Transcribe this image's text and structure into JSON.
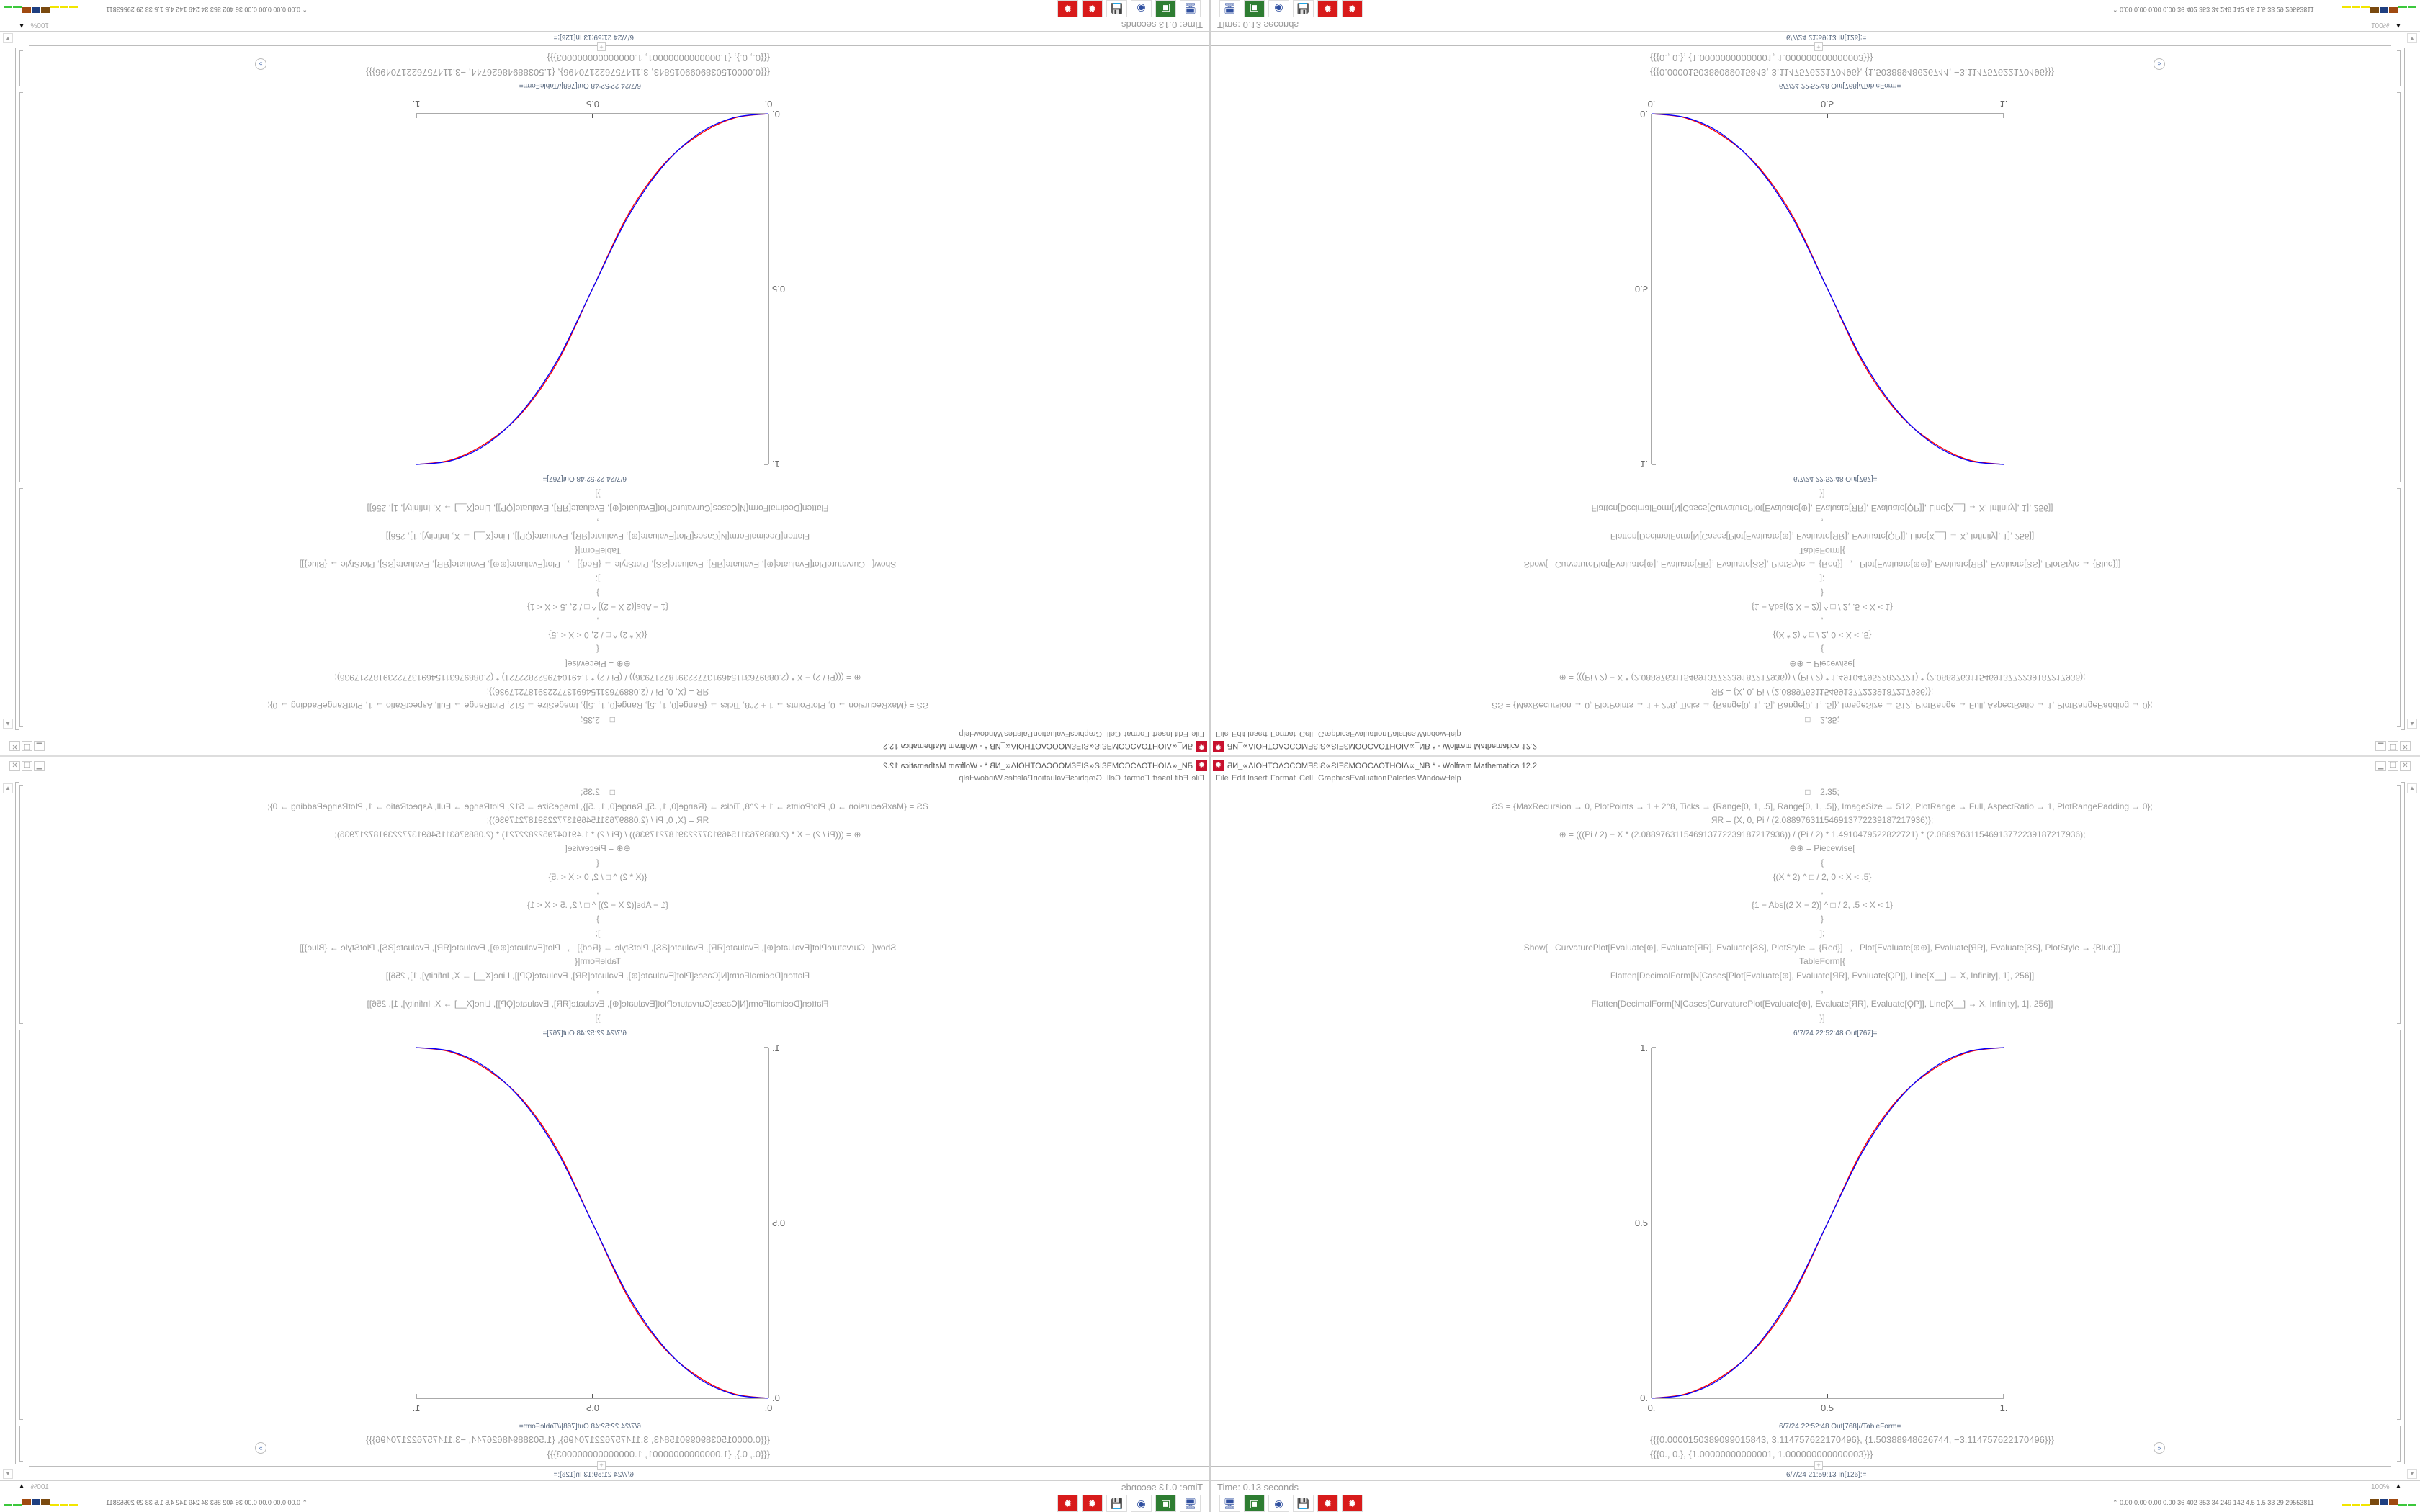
{
  "window": {
    "title": "ƋИ_∝ΔIOHTOΛƆCOMƎƐIƧ∝ƧIƎƐMOOCΛOTHOIΔ∝_NB * - Wolfram Mathematica 12.2",
    "controls": {
      "minimize": "▁",
      "maximize": "☐",
      "close": "✕"
    }
  },
  "menu": [
    "File",
    "Edit",
    "Insert",
    "Format",
    "Cell",
    "Graphics",
    "Evaluation",
    "Palettes",
    "Window",
    "Help"
  ],
  "cells": {
    "input_lines": [
      "□ = 2.35;",
      "ƧS = {MaxRecursion → 0, PlotPoints → 1 + 2^8, Ticks → {Range[0, 1, .5], Range[0, 1, .5]}, ImageSize → 512, PlotRange → Full, AspectRatio → 1, PlotRangePadding → 0};",
      "ЯR = {X, 0, Pi / (2.088976311546913772239187217936)};",
      "⊕ = (((Pi / 2) − X * (2.088976311546913772239187217936)) / (Pi / 2) * 1.4910479522822721) * (2.088976311546913772239187217936);",
      "⊕⊕ = Piecewise[",
      "{",
      "{(X * 2) ^ □ / 2, 0 < X < .5}",
      ",",
      "{1 − Abs[(2 X − 2)] ^ □ / 2, .5 < X < 1}",
      "}",
      "];",
      "Show[   CurvaturePlot[Evaluate[⊕], Evaluate[ЯR], Evaluate[ƧS], PlotStyle → {Red}]   ,   Plot[Evaluate[⊕⊕], Evaluate[ЯR], Evaluate[ƧS], PlotStyle → {Blue}]]",
      "TableForm[{",
      "Flatten[DecimalForm[N[Cases[Plot[Evaluate[⊕], Evaluate[ЯR], Evaluate[ϘP]], Line[X__] → X, Infinity], 1], 256]]",
      ",",
      "Flatten[DecimalForm[N[Cases[CurvaturePlot[Evaluate[⊕], Evaluate[ЯR], Evaluate[ϘP]], Line[X__] → X, Infinity], 1], 256]]",
      "}]"
    ],
    "plot_out_label": "6/7/24 22:52:48 Out[767]=",
    "table_out_label": "6/7/24 22:52:48 Out[768]//TableForm=",
    "table_rows": [
      "{{{0.0000150389099015843, 3.114757622170496}, {1.50388948626744, −3.114757622170496}}}",
      "{{{0., 0.}, {1.00000000000001, 1.000000000000003}}}"
    ],
    "next_input_label": "6/7/24 21:59:13 In[126]:=",
    "insert_icon": "+"
  },
  "chart_data": {
    "type": "line",
    "xlim": [
      0,
      1
    ],
    "ylim": [
      0,
      1
    ],
    "x_ticks": [
      "0.",
      "0.5",
      "1."
    ],
    "y_ticks": [
      "0.",
      "0.5",
      "1."
    ],
    "x_tick_values": [
      0,
      0.5,
      1
    ],
    "y_tick_values": [
      0,
      0.5,
      1
    ],
    "grid": false,
    "series": [
      {
        "color": "#ff0000",
        "x": [
          0,
          0.1,
          0.2,
          0.3,
          0.4,
          0.5,
          0.6,
          0.7,
          0.8,
          0.9,
          1
        ],
        "y": [
          0,
          0.013,
          0.062,
          0.147,
          0.29,
          0.5,
          0.71,
          0.853,
          0.938,
          0.987,
          1
        ]
      },
      {
        "color": "#0000ff",
        "x": [
          0,
          0.1,
          0.2,
          0.3,
          0.4,
          0.5,
          0.6,
          0.7,
          0.8,
          0.9,
          1
        ],
        "y": [
          0,
          0.0114,
          0.058,
          0.15,
          0.296,
          0.5,
          0.704,
          0.85,
          0.942,
          0.989,
          1
        ]
      }
    ]
  },
  "status": {
    "time": "Time: 0.13 seconds",
    "zoom": "100%",
    "zoom_icon": "▲"
  },
  "taskbar": {
    "icons": [
      {
        "name": "network-monitor-icon",
        "glyph": "🖥",
        "bg": "#ffffff"
      },
      {
        "name": "device-icon",
        "glyph": "▣",
        "bg": "#2e7d32"
      },
      {
        "name": "firefox-icon",
        "glyph": "◉",
        "bg": "#ffffff"
      },
      {
        "name": "floppy-64-icon",
        "glyph": "💾",
        "bg": "#ffffff"
      },
      {
        "name": "mathematica-icon",
        "glyph": "✹",
        "bg": "#d81b1b"
      },
      {
        "name": "mathematica-icon-2",
        "glyph": "✹",
        "bg": "#d81b1b"
      }
    ],
    "stats": "⌃  0.00 0.00 0.00 0.00   36   402  353   34   249  142   4.5   1.5   33    29  29553811",
    "meter_colors": [
      "#f2e600",
      "#f2e600",
      "#f2e600",
      "#7a4a10",
      "#1f3f80",
      "#a04a10",
      "#3cc83c",
      "#3cc83c"
    ]
  }
}
